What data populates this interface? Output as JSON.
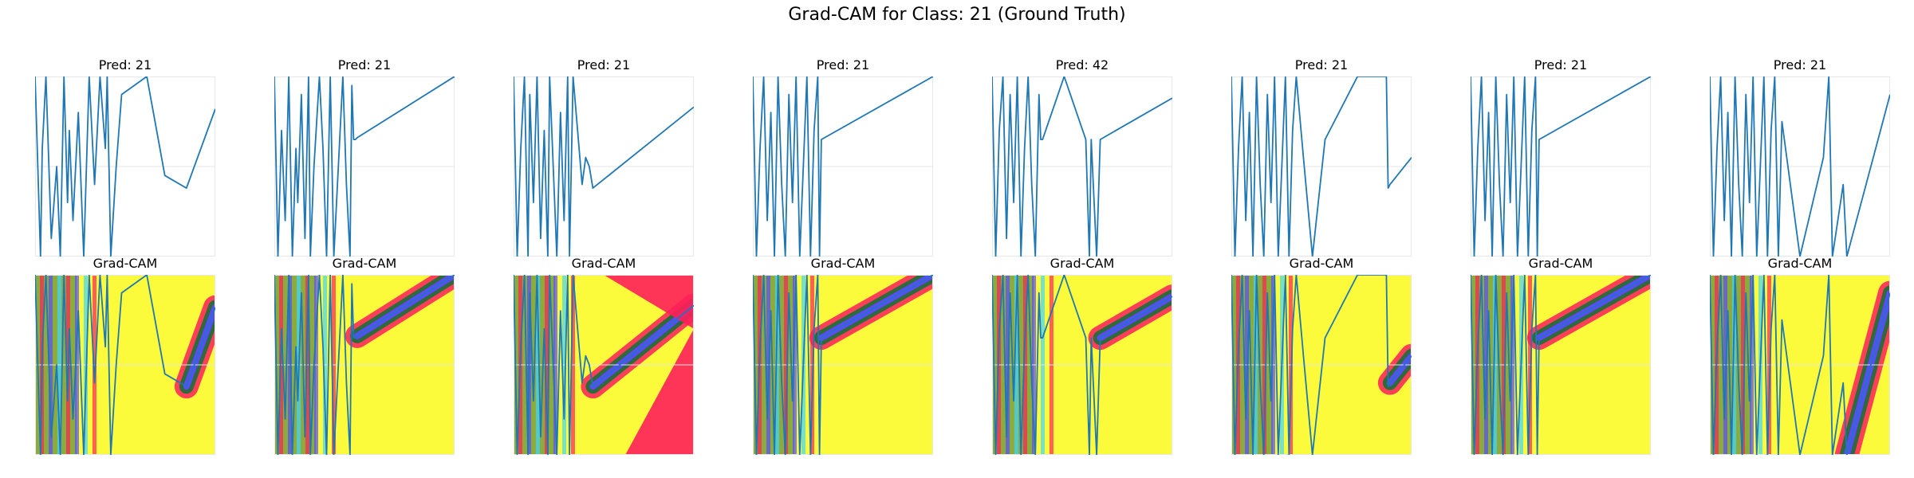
{
  "title": "Grad-CAM for Class: 21 (Ground Truth)",
  "colors": {
    "line": "#1f77b4",
    "heat_bg": "#fbfb3c",
    "heat_red": "#ff1f5a",
    "heat_green": "#2f6a3c",
    "heat_blue": "#5a4bff",
    "heat_cyan": "#3fd6ff"
  },
  "chart_data": [
    {
      "type": "line",
      "title": "Pred: 21",
      "cam_title": "Grad-CAM",
      "x": [
        0,
        3,
        4,
        6,
        9,
        12,
        14,
        16,
        18,
        19,
        21,
        24,
        27,
        30,
        33,
        36,
        39,
        40,
        42,
        45,
        48,
        62,
        72,
        84,
        100
      ],
      "y": [
        1.0,
        0.0,
        0.6,
        1.0,
        0.1,
        0.5,
        0.0,
        1.0,
        0.3,
        0.7,
        0.2,
        0.8,
        0.0,
        1.0,
        0.4,
        1.0,
        0.6,
        1.0,
        0.0,
        0.5,
        0.9,
        1.0,
        0.45,
        0.38,
        0.82
      ]
    },
    {
      "type": "line",
      "title": "Pred: 21",
      "cam_title": "Grad-CAM",
      "x": [
        0,
        2,
        4,
        6,
        8,
        10,
        12,
        13,
        15,
        17,
        19,
        20,
        22,
        25,
        27,
        29,
        31,
        33,
        36,
        38,
        40,
        42,
        43,
        44,
        45,
        46,
        100
      ],
      "y": [
        1.0,
        0.0,
        0.7,
        0.2,
        1.0,
        0.0,
        0.6,
        0.3,
        0.9,
        0.1,
        1.0,
        0.0,
        0.5,
        1.0,
        0.6,
        0.0,
        1.0,
        0.0,
        0.6,
        1.0,
        0.4,
        0.0,
        0.95,
        0.65,
        0.65,
        0.66,
        1.0
      ]
    },
    {
      "type": "line",
      "title": "Pred: 21",
      "cam_title": "Grad-CAM",
      "x": [
        0,
        2,
        4,
        6,
        8,
        9,
        11,
        13,
        15,
        17,
        19,
        20,
        22,
        24,
        26,
        28,
        30,
        31,
        33,
        38,
        40,
        42,
        44,
        100
      ],
      "y": [
        1.0,
        0.0,
        0.6,
        1.0,
        0.0,
        0.9,
        0.3,
        1.0,
        0.1,
        0.7,
        0.0,
        1.0,
        0.5,
        0.0,
        0.8,
        0.2,
        1.0,
        0.0,
        1.0,
        0.4,
        0.55,
        0.5,
        0.38,
        0.83
      ]
    },
    {
      "type": "line",
      "title": "Pred: 21",
      "cam_title": "Grad-CAM",
      "x": [
        0,
        2,
        4,
        6,
        8,
        10,
        12,
        14,
        16,
        18,
        20,
        22,
        24,
        26,
        28,
        30,
        32,
        34,
        36,
        37,
        38,
        100
      ],
      "y": [
        1.0,
        0.0,
        0.6,
        1.0,
        0.2,
        0.8,
        0.0,
        1.0,
        0.4,
        0.0,
        0.9,
        0.3,
        1.0,
        0.0,
        0.5,
        1.0,
        0.0,
        0.7,
        1.0,
        0.0,
        0.65,
        1.0
      ]
    },
    {
      "type": "line",
      "title": "Pred: 42",
      "cam_title": "Grad-CAM",
      "x": [
        0,
        2,
        4,
        6,
        8,
        10,
        12,
        14,
        16,
        18,
        20,
        22,
        24,
        26,
        27,
        28,
        40,
        52,
        54,
        55,
        58,
        60,
        100
      ],
      "y": [
        1.0,
        0.0,
        0.7,
        1.0,
        0.1,
        0.9,
        0.3,
        1.0,
        0.0,
        0.6,
        1.0,
        0.4,
        0.0,
        0.9,
        0.65,
        0.65,
        1.0,
        0.65,
        0.0,
        0.65,
        0.0,
        0.65,
        0.88
      ]
    },
    {
      "type": "line",
      "title": "Pred: 21",
      "cam_title": "Grad-CAM",
      "x": [
        0,
        2,
        4,
        6,
        8,
        10,
        12,
        14,
        16,
        18,
        20,
        22,
        24,
        26,
        28,
        30,
        32,
        34,
        36,
        40,
        45,
        52,
        70,
        86,
        87,
        88,
        100
      ],
      "y": [
        1.0,
        0.0,
        0.6,
        1.0,
        0.2,
        0.8,
        0.0,
        1.0,
        0.4,
        0.0,
        0.9,
        0.3,
        1.0,
        0.0,
        0.5,
        1.0,
        0.0,
        0.7,
        1.0,
        0.55,
        0.0,
        0.65,
        1.0,
        1.0,
        0.38,
        0.4,
        0.55
      ]
    },
    {
      "type": "line",
      "title": "Pred: 21",
      "cam_title": "Grad-CAM",
      "x": [
        0,
        2,
        4,
        6,
        8,
        10,
        12,
        14,
        16,
        18,
        20,
        22,
        24,
        26,
        28,
        30,
        32,
        34,
        36,
        37,
        38,
        100
      ],
      "y": [
        1.0,
        0.0,
        0.6,
        1.0,
        0.2,
        0.8,
        0.0,
        1.0,
        0.4,
        0.0,
        0.9,
        0.3,
        1.0,
        0.0,
        0.5,
        1.0,
        0.0,
        0.7,
        1.0,
        0.0,
        0.65,
        1.0
      ]
    },
    {
      "type": "line",
      "title": "Pred: 21",
      "cam_title": "Grad-CAM",
      "x": [
        0,
        2,
        4,
        6,
        8,
        10,
        12,
        14,
        16,
        18,
        20,
        22,
        24,
        26,
        28,
        30,
        32,
        34,
        36,
        38,
        40,
        50,
        63,
        66,
        68,
        74,
        76,
        100
      ],
      "y": [
        1.0,
        0.0,
        0.6,
        1.0,
        0.2,
        0.8,
        0.0,
        1.0,
        0.4,
        0.0,
        0.9,
        0.3,
        1.0,
        0.0,
        0.5,
        1.0,
        0.0,
        0.7,
        1.0,
        0.0,
        0.75,
        0.0,
        0.55,
        1.0,
        0.0,
        0.4,
        0.0,
        0.9
      ]
    }
  ]
}
